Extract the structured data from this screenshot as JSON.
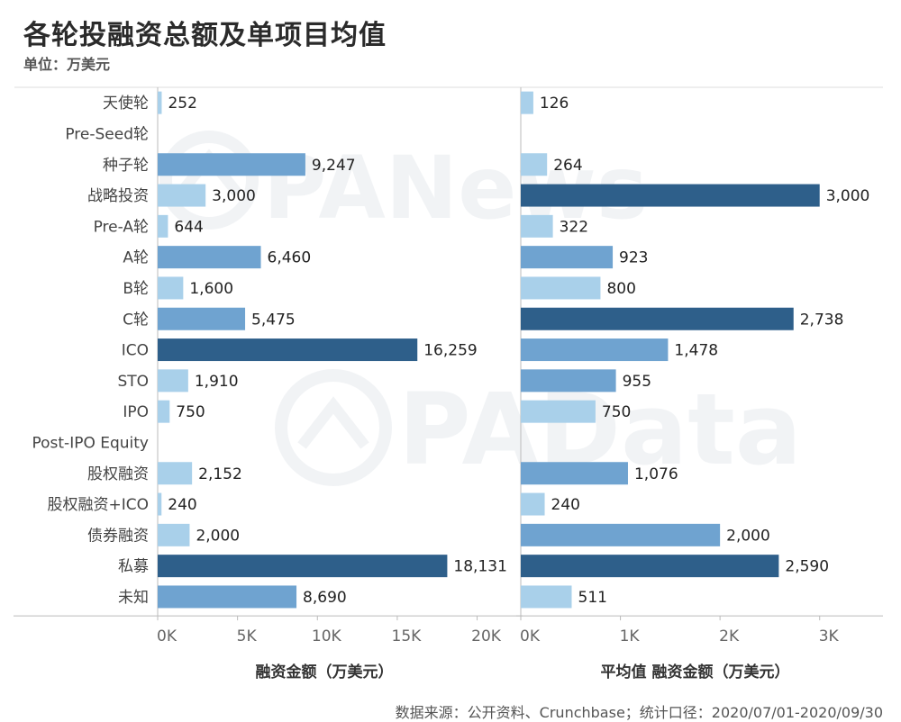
{
  "header": {
    "title": "各轮投融资总额及单项目均值",
    "unit": "单位：万美元"
  },
  "footer": {
    "source": "数据来源：公开资料、Crunchbase；统计口径：2020/07/01-2020/09/30"
  },
  "watermarks": [
    "PANews",
    "PAData"
  ],
  "colors": {
    "light": "#a9d0ea",
    "medium": "#6fa3d0",
    "dark": "#2e5f8a",
    "axis": "#bbbbbb",
    "grid": "#dddddd",
    "watermark": "#e6eaee"
  },
  "chart_data": [
    {
      "type": "bar",
      "orientation": "horizontal",
      "categories": [
        "天使轮",
        "Pre-Seed轮",
        "种子轮",
        "战略投资",
        "Pre-A轮",
        "A轮",
        "B轮",
        "C轮",
        "ICO",
        "STO",
        "IPO",
        "Post-IPO Equity",
        "股权融资",
        "股权融资+ICO",
        "债券融资",
        "私募",
        "未知"
      ],
      "values": [
        252,
        null,
        9247,
        3000,
        644,
        6460,
        1600,
        5475,
        16259,
        1910,
        750,
        null,
        2152,
        240,
        2000,
        18131,
        8690
      ],
      "value_labels": [
        "252",
        "",
        "9,247",
        "3,000",
        "644",
        "6,460",
        "1,600",
        "5,475",
        "16,259",
        "1,910",
        "750",
        "",
        "2,152",
        "240",
        "2,000",
        "18,131",
        "8,690"
      ],
      "xlabel": "融资金额（万美元）",
      "xlim": [
        0,
        22000
      ],
      "xticks": [
        0,
        5000,
        10000,
        15000,
        20000
      ],
      "xtick_labels": [
        "0K",
        "5K",
        "10K",
        "15K",
        "20K"
      ],
      "color_scale": "value"
    },
    {
      "type": "bar",
      "orientation": "horizontal",
      "categories": [
        "天使轮",
        "Pre-Seed轮",
        "种子轮",
        "战略投资",
        "Pre-A轮",
        "A轮",
        "B轮",
        "C轮",
        "ICO",
        "STO",
        "IPO",
        "Post-IPO Equity",
        "股权融资",
        "股权融资+ICO",
        "债券融资",
        "私募",
        "未知"
      ],
      "values": [
        126,
        null,
        264,
        3000,
        322,
        923,
        800,
        2738,
        1478,
        955,
        750,
        null,
        1076,
        240,
        2000,
        2590,
        511
      ],
      "value_labels": [
        "126",
        "",
        "264",
        "3,000",
        "322",
        "923",
        "800",
        "2,738",
        "1,478",
        "955",
        "750",
        "",
        "1,076",
        "240",
        "2,000",
        "2,590",
        "511"
      ],
      "xlabel": "平均值 融资金额（万美元）",
      "xlim": [
        0,
        3500
      ],
      "xticks": [
        0,
        1000,
        2000,
        3000
      ],
      "xtick_labels": [
        "0K",
        "1K",
        "2K",
        "3K"
      ],
      "color_scale": "value"
    }
  ]
}
